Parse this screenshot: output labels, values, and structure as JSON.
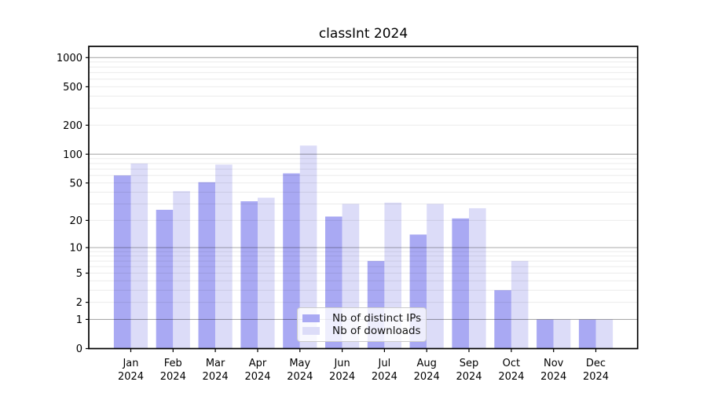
{
  "figure": {
    "title": "classInt 2024"
  },
  "legend": {
    "items": [
      {
        "label": "Nb of distinct IPs",
        "color": "#a9a9f3"
      },
      {
        "label": "Nb of downloads",
        "color": "#dcdcf8"
      }
    ]
  },
  "chart_data": {
    "type": "bar",
    "title": "classInt 2024",
    "categories": [
      "Jan 2024",
      "Feb 2024",
      "Mar 2024",
      "Apr 2024",
      "May 2024",
      "Jun 2024",
      "Jul 2024",
      "Aug 2024",
      "Sep 2024",
      "Oct 2024",
      "Nov 2024",
      "Dec 2024"
    ],
    "series": [
      {
        "name": "Nb of distinct IPs",
        "color": "#a9a9f3",
        "values": [
          60,
          26,
          51,
          32,
          63,
          22,
          7,
          14,
          21,
          3,
          1,
          1
        ]
      },
      {
        "name": "Nb of downloads",
        "color": "#dcdcf8",
        "values": [
          80,
          41,
          78,
          35,
          123,
          30,
          31,
          30,
          27,
          7,
          1,
          1
        ]
      }
    ],
    "xlabel": "",
    "ylabel": "",
    "yscale": "log1p",
    "yticks": [
      0,
      1,
      2,
      5,
      10,
      20,
      50,
      100,
      200,
      500,
      1000
    ],
    "ylim": [
      0,
      1284
    ],
    "grid": "major and minor horizontal gridlines",
    "legend_position": "lower center"
  }
}
